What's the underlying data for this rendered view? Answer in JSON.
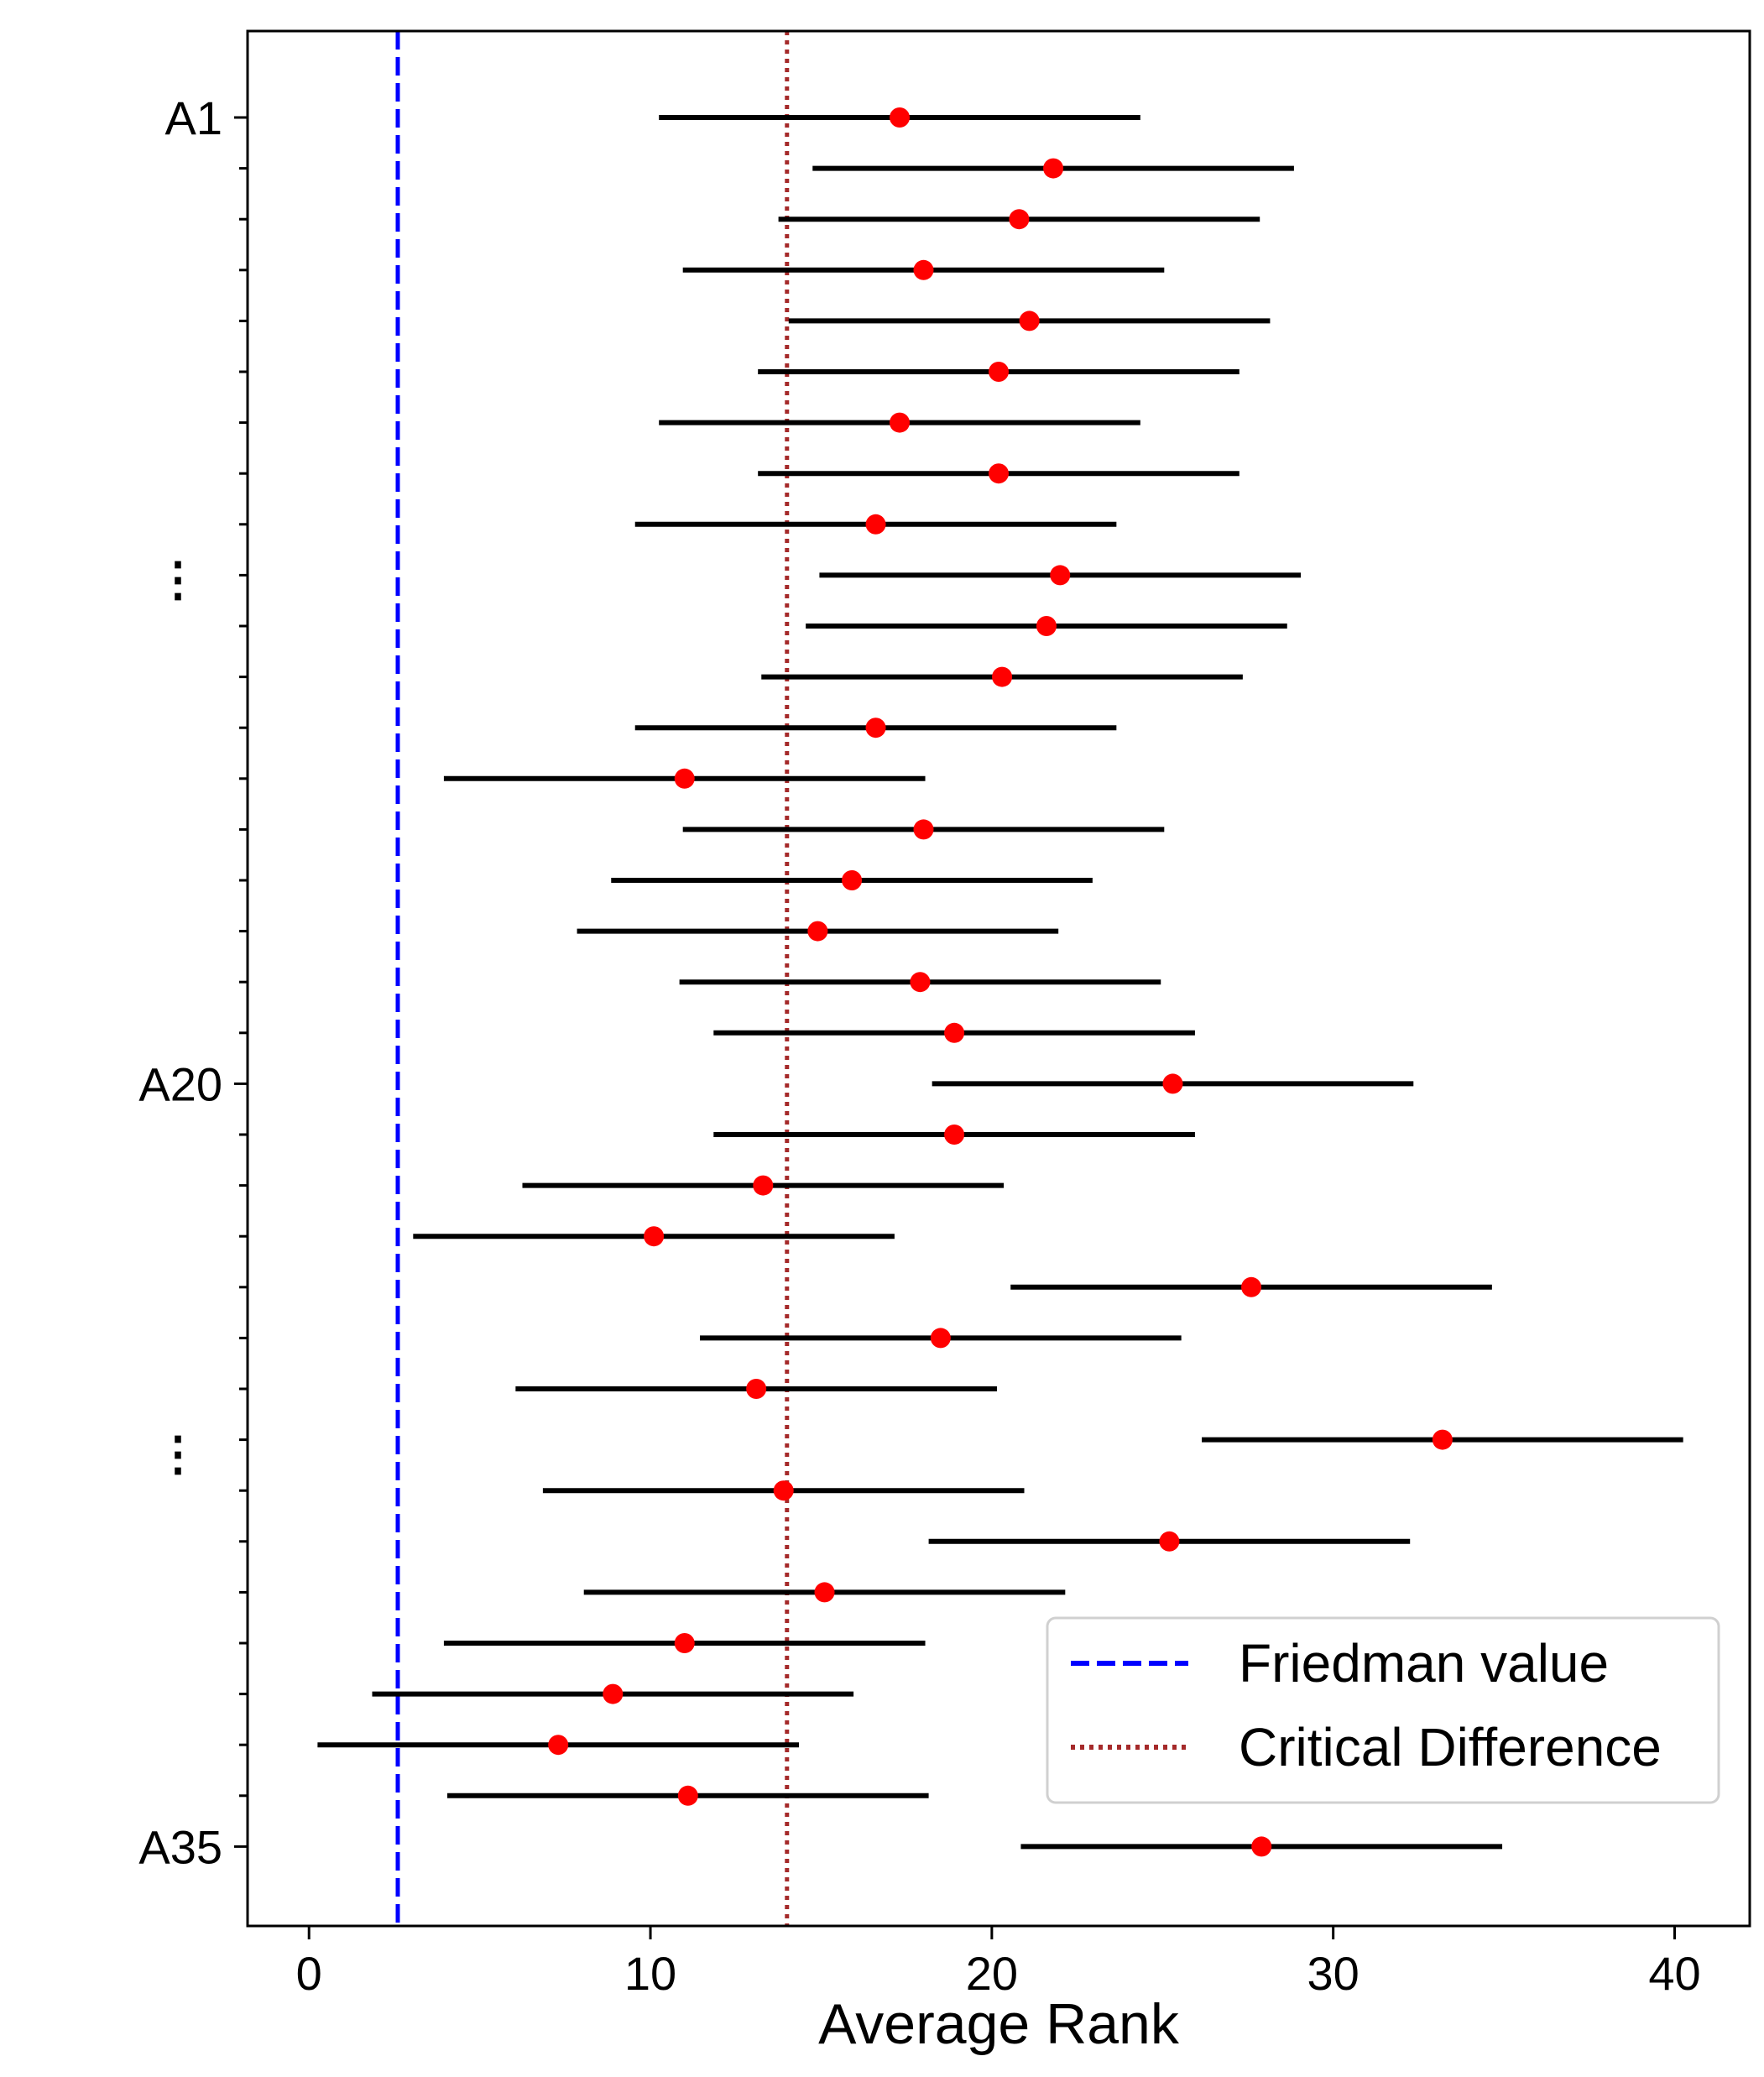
{
  "chart_data": {
    "type": "scatter",
    "xlabel": "Average Rank",
    "ylabel": "",
    "xlim": [
      -1.8,
      42.2
    ],
    "x_ticks": [
      0,
      10,
      20,
      30,
      40
    ],
    "y_tick_labels": {
      "1": "A1",
      "20": "A20",
      "35": "A35"
    },
    "ellipsis_label": "⋮",
    "grid": false,
    "legend": {
      "placement": "lower-right",
      "entries": [
        {
          "name": "Friedman value",
          "style": "dashed",
          "color": "#0000ff"
        },
        {
          "name": "Critical Difference",
          "style": "dotted",
          "color": "#a52a2a"
        }
      ]
    },
    "friedman_value": 2.6,
    "critical_difference": 14.0,
    "half_interval": 7.05,
    "series": [
      {
        "name": "Average rank",
        "marker_color": "#ff0000",
        "interval_color": "#000000",
        "values": [
          17.3,
          21.8,
          20.8,
          18.0,
          21.1,
          20.2,
          17.3,
          20.2,
          16.6,
          22.0,
          21.6,
          20.3,
          16.6,
          11.0,
          18.0,
          15.9,
          14.9,
          17.9,
          18.9,
          25.3,
          18.9,
          13.3,
          10.1,
          27.6,
          18.5,
          13.1,
          33.2,
          13.9,
          25.2,
          15.1,
          11.0,
          8.9,
          7.3,
          11.1,
          27.9
        ]
      }
    ]
  }
}
